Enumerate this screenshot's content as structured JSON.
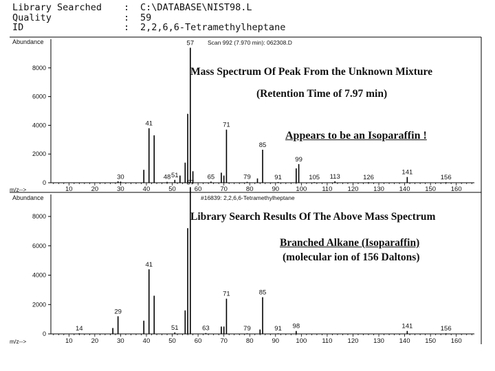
{
  "header": [
    {
      "key": "Library Searched",
      "value": "C:\\DATABASE\\NIST98.L"
    },
    {
      "key": "Quality",
      "value": "59"
    },
    {
      "key": "ID",
      "value": "2,2,6,6-Tetramethylheptane"
    }
  ],
  "annotations": {
    "top_title": "Mass Spectrum Of Peak From the Unknown Mixture",
    "top_retention": "(Retention Time of 7.97 min)",
    "top_isoparaffin": "Appears to be an Isoparaffin !",
    "bottom_title": "Library Search Results Of The Above Mass Spectrum",
    "bottom_branched": "Branched Alkane (Isoparaffin)",
    "bottom_molecular": "(molecular ion of 156 Daltons)"
  },
  "chart_data": [
    {
      "type": "bar",
      "title": "Scan 992 (7.970 min): 062308.D",
      "ylabel": "Abundance",
      "xlabel": "m/z-->",
      "xlim": [
        3,
        167
      ],
      "ylim": [
        0,
        10000
      ],
      "xticks": [
        10,
        20,
        30,
        40,
        50,
        60,
        70,
        80,
        90,
        100,
        110,
        120,
        130,
        140,
        150,
        160
      ],
      "yticks": [
        0,
        2000,
        4000,
        6000,
        8000
      ],
      "peaks": [
        {
          "mz": 29,
          "abundance": 100
        },
        {
          "mz": 30,
          "abundance": 80,
          "label": "30"
        },
        {
          "mz": 39,
          "abundance": 900
        },
        {
          "mz": 41,
          "abundance": 3800,
          "label": "41"
        },
        {
          "mz": 43,
          "abundance": 3300
        },
        {
          "mz": 48,
          "abundance": 60,
          "label": "48"
        },
        {
          "mz": 51,
          "abundance": 200,
          "label": "51"
        },
        {
          "mz": 53,
          "abundance": 500
        },
        {
          "mz": 55,
          "abundance": 1400
        },
        {
          "mz": 56,
          "abundance": 4800
        },
        {
          "mz": 57,
          "abundance": 9400,
          "label": "57"
        },
        {
          "mz": 58,
          "abundance": 800
        },
        {
          "mz": 65,
          "abundance": 80,
          "label": "65"
        },
        {
          "mz": 69,
          "abundance": 700
        },
        {
          "mz": 70,
          "abundance": 500
        },
        {
          "mz": 71,
          "abundance": 3700,
          "label": "71"
        },
        {
          "mz": 79,
          "abundance": 60,
          "label": "79"
        },
        {
          "mz": 83,
          "abundance": 300
        },
        {
          "mz": 85,
          "abundance": 2300,
          "label": "85"
        },
        {
          "mz": 91,
          "abundance": 50,
          "label": "91"
        },
        {
          "mz": 98,
          "abundance": 1000
        },
        {
          "mz": 99,
          "abundance": 1300,
          "label": "99"
        },
        {
          "mz": 105,
          "abundance": 40,
          "label": "105"
        },
        {
          "mz": 113,
          "abundance": 100,
          "label": "113"
        },
        {
          "mz": 126,
          "abundance": 40,
          "label": "126"
        },
        {
          "mz": 141,
          "abundance": 400,
          "label": "141"
        },
        {
          "mz": 156,
          "abundance": 40,
          "label": "156"
        }
      ]
    },
    {
      "type": "bar",
      "title": "#16839: 2,2,6,6-Tetramethylheptane",
      "ylabel": "Abundance",
      "xlabel": "m/z-->",
      "xlim": [
        3,
        167
      ],
      "ylim": [
        0,
        9500
      ],
      "xticks": [
        10,
        20,
        30,
        40,
        50,
        60,
        70,
        80,
        90,
        100,
        110,
        120,
        130,
        140,
        150,
        160
      ],
      "yticks": [
        0,
        2000,
        4000,
        6000,
        8000
      ],
      "peaks": [
        {
          "mz": 14,
          "abundance": 40,
          "label": "14"
        },
        {
          "mz": 27,
          "abundance": 400
        },
        {
          "mz": 29,
          "abundance": 1200,
          "label": "29"
        },
        {
          "mz": 39,
          "abundance": 900
        },
        {
          "mz": 41,
          "abundance": 4400,
          "label": "41"
        },
        {
          "mz": 43,
          "abundance": 2600
        },
        {
          "mz": 51,
          "abundance": 100,
          "label": "51"
        },
        {
          "mz": 55,
          "abundance": 1600
        },
        {
          "mz": 56,
          "abundance": 7200
        },
        {
          "mz": 57,
          "abundance": 10000,
          "label": "57"
        },
        {
          "mz": 63,
          "abundance": 60,
          "label": "63"
        },
        {
          "mz": 69,
          "abundance": 500
        },
        {
          "mz": 70,
          "abundance": 500
        },
        {
          "mz": 71,
          "abundance": 2400,
          "label": "71"
        },
        {
          "mz": 79,
          "abundance": 40,
          "label": "79"
        },
        {
          "mz": 84,
          "abundance": 300
        },
        {
          "mz": 85,
          "abundance": 2500,
          "label": "85"
        },
        {
          "mz": 91,
          "abundance": 40,
          "label": "91"
        },
        {
          "mz": 98,
          "abundance": 200,
          "label": "98"
        },
        {
          "mz": 141,
          "abundance": 200,
          "label": "141"
        },
        {
          "mz": 156,
          "abundance": 40,
          "label": "156"
        }
      ]
    }
  ]
}
